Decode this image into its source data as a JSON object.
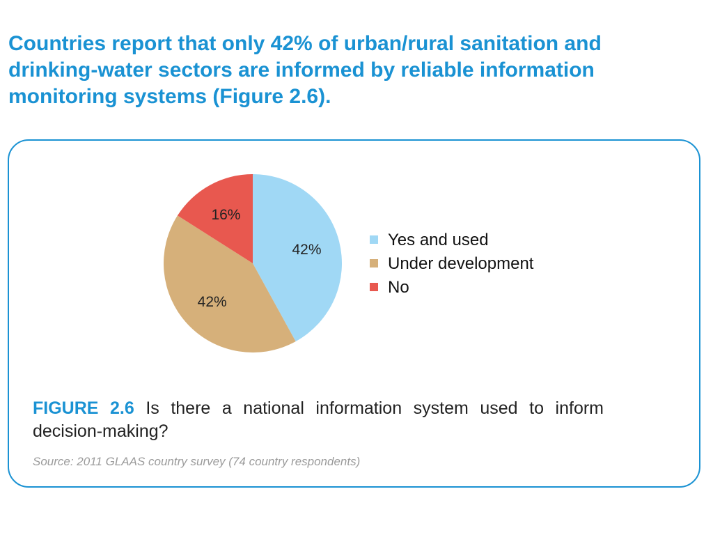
{
  "headline": [
    "Countries report that only 42% of urban/rural sanitation and",
    "drinking-water sectors are informed by reliable information",
    "monitoring systems (Figure 2.6)."
  ],
  "colors": {
    "accent": "#1a92d3",
    "slices": [
      "#a0d8f5",
      "#d6b07a",
      "#e8584f"
    ]
  },
  "chart_data": {
    "type": "pie",
    "labels": [
      "Yes and used",
      "Under development",
      "No"
    ],
    "values": [
      42,
      42,
      16
    ],
    "value_labels": [
      "42%",
      "42%",
      "16%"
    ],
    "legend_position": "right"
  },
  "caption": {
    "figure_label": "FIGURE 2.6",
    "text": " Is there a national information system used to inform decision-making?"
  },
  "source": "Source: 2011 GLAAS country survey (74 country respondents)"
}
